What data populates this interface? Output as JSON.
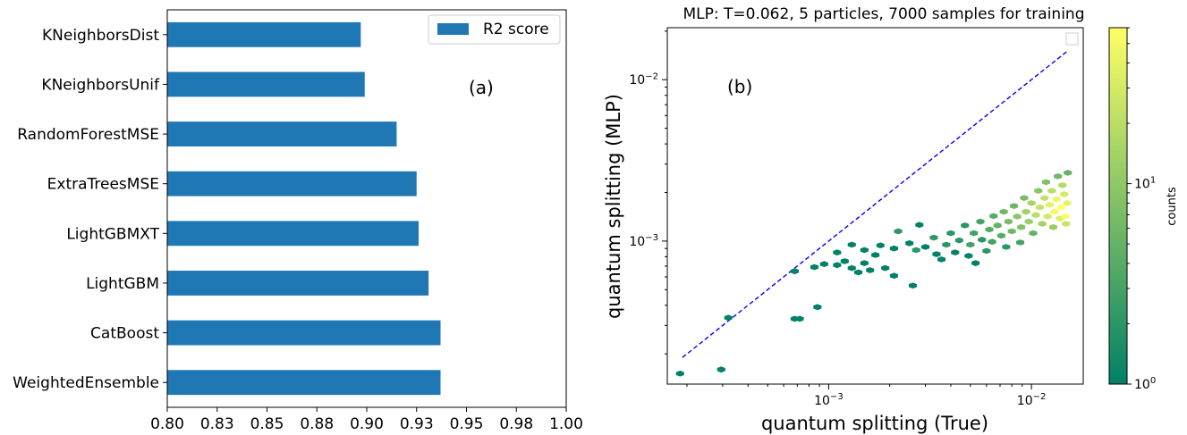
{
  "chart_data": [
    {
      "type": "bar",
      "orientation": "horizontal",
      "categories": [
        "KNeighborsDist",
        "KNeighborsUnif",
        "RandomForestMSE",
        "ExtraTreesMSE",
        "LightGBMXT",
        "LightGBM",
        "CatBoost",
        "WeightedEnsemble"
      ],
      "series": [
        {
          "name": "R2 score",
          "values": [
            0.897,
            0.899,
            0.915,
            0.925,
            0.926,
            0.931,
            0.937,
            0.937
          ],
          "color": "#1f77b4"
        }
      ],
      "xlim": [
        0.8,
        1.0
      ],
      "xticks": [
        "0.80",
        "0.83",
        "0.85",
        "0.88",
        "0.90",
        "0.93",
        "0.95",
        "0.98",
        "1.00"
      ],
      "annotation": "(a)",
      "legend": "top-right",
      "grid": false
    },
    {
      "type": "scatter",
      "subtype": "hexbin",
      "title": "MLP: T=0.062, 5 particles, 7000 samples for training",
      "xlabel": "quantum splitting (True)",
      "ylabel": "quantum splitting (MLP)",
      "xscale": "log",
      "yscale": "log",
      "xlim": [
        0.00016,
        0.018
      ],
      "ylim": [
        0.00013,
        0.021
      ],
      "xticks": [
        "10^-3",
        "10^-2"
      ],
      "yticks": [
        "10^-3",
        "10^-2"
      ],
      "annotation": "(b)",
      "grid": false,
      "reference_line": {
        "style": "dashed",
        "color": "#0000ff",
        "from": [
          0.00019,
          0.00019
        ],
        "to": [
          0.015,
          0.015
        ]
      },
      "colorbar": {
        "label": "counts",
        "scale": "log",
        "range": [
          1,
          60
        ],
        "ticks": [
          "10^0",
          "10^1"
        ],
        "colormap": "summer"
      },
      "points": [
        {
          "x": 0.000185,
          "y": 0.000151,
          "c": 1
        },
        {
          "x": 0.000295,
          "y": 0.00016,
          "c": 1
        },
        {
          "x": 0.00032,
          "y": 0.000335,
          "c": 1
        },
        {
          "x": 0.00068,
          "y": 0.00033,
          "c": 1
        },
        {
          "x": 0.00072,
          "y": 0.00033,
          "c": 1
        },
        {
          "x": 0.00088,
          "y": 0.00039,
          "c": 1
        },
        {
          "x": 0.00068,
          "y": 0.00065,
          "c": 1
        },
        {
          "x": 0.00085,
          "y": 0.00069,
          "c": 1
        },
        {
          "x": 0.00095,
          "y": 0.00072,
          "c": 1
        },
        {
          "x": 0.0011,
          "y": 0.00071,
          "c": 1
        },
        {
          "x": 0.0013,
          "y": 0.00068,
          "c": 1
        },
        {
          "x": 0.0012,
          "y": 0.00075,
          "c": 1
        },
        {
          "x": 0.0014,
          "y": 0.00064,
          "c": 1
        },
        {
          "x": 0.0016,
          "y": 0.00066,
          "c": 1
        },
        {
          "x": 0.0015,
          "y": 0.00073,
          "c": 1
        },
        {
          "x": 0.0011,
          "y": 0.00085,
          "c": 1
        },
        {
          "x": 0.0013,
          "y": 0.00095,
          "c": 1
        },
        {
          "x": 0.0015,
          "y": 0.00088,
          "c": 1
        },
        {
          "x": 0.0017,
          "y": 0.00082,
          "c": 1
        },
        {
          "x": 0.0019,
          "y": 0.00068,
          "c": 1
        },
        {
          "x": 0.0021,
          "y": 0.00061,
          "c": 1
        },
        {
          "x": 0.0018,
          "y": 0.00094,
          "c": 1
        },
        {
          "x": 0.0021,
          "y": 0.0009,
          "c": 1
        },
        {
          "x": 0.0022,
          "y": 0.00115,
          "c": 2
        },
        {
          "x": 0.0026,
          "y": 0.00053,
          "c": 1
        },
        {
          "x": 0.0025,
          "y": 0.00097,
          "c": 1
        },
        {
          "x": 0.0027,
          "y": 0.00088,
          "c": 2
        },
        {
          "x": 0.003,
          "y": 0.00092,
          "c": 1
        },
        {
          "x": 0.0028,
          "y": 0.00126,
          "c": 1
        },
        {
          "x": 0.0033,
          "y": 0.00105,
          "c": 2
        },
        {
          "x": 0.0034,
          "y": 0.00083,
          "c": 1
        },
        {
          "x": 0.0036,
          "y": 0.00077,
          "c": 1
        },
        {
          "x": 0.0038,
          "y": 0.00095,
          "c": 2
        },
        {
          "x": 0.004,
          "y": 0.00112,
          "c": 2
        },
        {
          "x": 0.0042,
          "y": 0.00085,
          "c": 1
        },
        {
          "x": 0.0044,
          "y": 0.00101,
          "c": 2
        },
        {
          "x": 0.0047,
          "y": 0.00125,
          "c": 2
        },
        {
          "x": 0.0049,
          "y": 0.00081,
          "c": 1
        },
        {
          "x": 0.005,
          "y": 0.00095,
          "c": 3
        },
        {
          "x": 0.0053,
          "y": 0.00073,
          "c": 1
        },
        {
          "x": 0.0052,
          "y": 0.00112,
          "c": 3
        },
        {
          "x": 0.0056,
          "y": 0.00132,
          "c": 3
        },
        {
          "x": 0.0057,
          "y": 0.00102,
          "c": 2
        },
        {
          "x": 0.006,
          "y": 0.00087,
          "c": 2
        },
        {
          "x": 0.0062,
          "y": 0.00118,
          "c": 4
        },
        {
          "x": 0.0065,
          "y": 0.00143,
          "c": 4
        },
        {
          "x": 0.0064,
          "y": 0.00099,
          "c": 3
        },
        {
          "x": 0.0068,
          "y": 0.00125,
          "c": 5
        },
        {
          "x": 0.0071,
          "y": 0.00108,
          "c": 4
        },
        {
          "x": 0.0073,
          "y": 0.00152,
          "c": 6
        },
        {
          "x": 0.0075,
          "y": 0.00092,
          "c": 2
        },
        {
          "x": 0.0077,
          "y": 0.00132,
          "c": 7
        },
        {
          "x": 0.008,
          "y": 0.00115,
          "c": 6
        },
        {
          "x": 0.0082,
          "y": 0.00165,
          "c": 6
        },
        {
          "x": 0.0085,
          "y": 0.00142,
          "c": 10
        },
        {
          "x": 0.0088,
          "y": 0.00098,
          "c": 3
        },
        {
          "x": 0.0089,
          "y": 0.00122,
          "c": 8
        },
        {
          "x": 0.0092,
          "y": 0.00185,
          "c": 7
        },
        {
          "x": 0.0094,
          "y": 0.00152,
          "c": 13
        },
        {
          "x": 0.0097,
          "y": 0.00132,
          "c": 12
        },
        {
          "x": 0.01,
          "y": 0.00172,
          "c": 15
        },
        {
          "x": 0.0102,
          "y": 0.00112,
          "c": 5
        },
        {
          "x": 0.0105,
          "y": 0.00145,
          "c": 20
        },
        {
          "x": 0.0108,
          "y": 0.00205,
          "c": 9
        },
        {
          "x": 0.011,
          "y": 0.00162,
          "c": 25
        },
        {
          "x": 0.0113,
          "y": 0.00128,
          "c": 14
        },
        {
          "x": 0.0116,
          "y": 0.00185,
          "c": 22
        },
        {
          "x": 0.0118,
          "y": 0.00232,
          "c": 8
        },
        {
          "x": 0.012,
          "y": 0.00142,
          "c": 30
        },
        {
          "x": 0.0123,
          "y": 0.00168,
          "c": 40
        },
        {
          "x": 0.0126,
          "y": 0.00205,
          "c": 20
        },
        {
          "x": 0.0128,
          "y": 0.00122,
          "c": 12
        },
        {
          "x": 0.013,
          "y": 0.00152,
          "c": 50
        },
        {
          "x": 0.0133,
          "y": 0.00182,
          "c": 45
        },
        {
          "x": 0.0135,
          "y": 0.00252,
          "c": 6
        },
        {
          "x": 0.0138,
          "y": 0.00138,
          "c": 35
        },
        {
          "x": 0.014,
          "y": 0.00162,
          "c": 60
        },
        {
          "x": 0.0142,
          "y": 0.00222,
          "c": 18
        },
        {
          "x": 0.0145,
          "y": 0.00195,
          "c": 30
        },
        {
          "x": 0.0147,
          "y": 0.00142,
          "c": 55
        },
        {
          "x": 0.0148,
          "y": 0.00128,
          "c": 25
        },
        {
          "x": 0.015,
          "y": 0.00172,
          "c": 40
        },
        {
          "x": 0.0151,
          "y": 0.00265,
          "c": 5
        }
      ]
    }
  ]
}
